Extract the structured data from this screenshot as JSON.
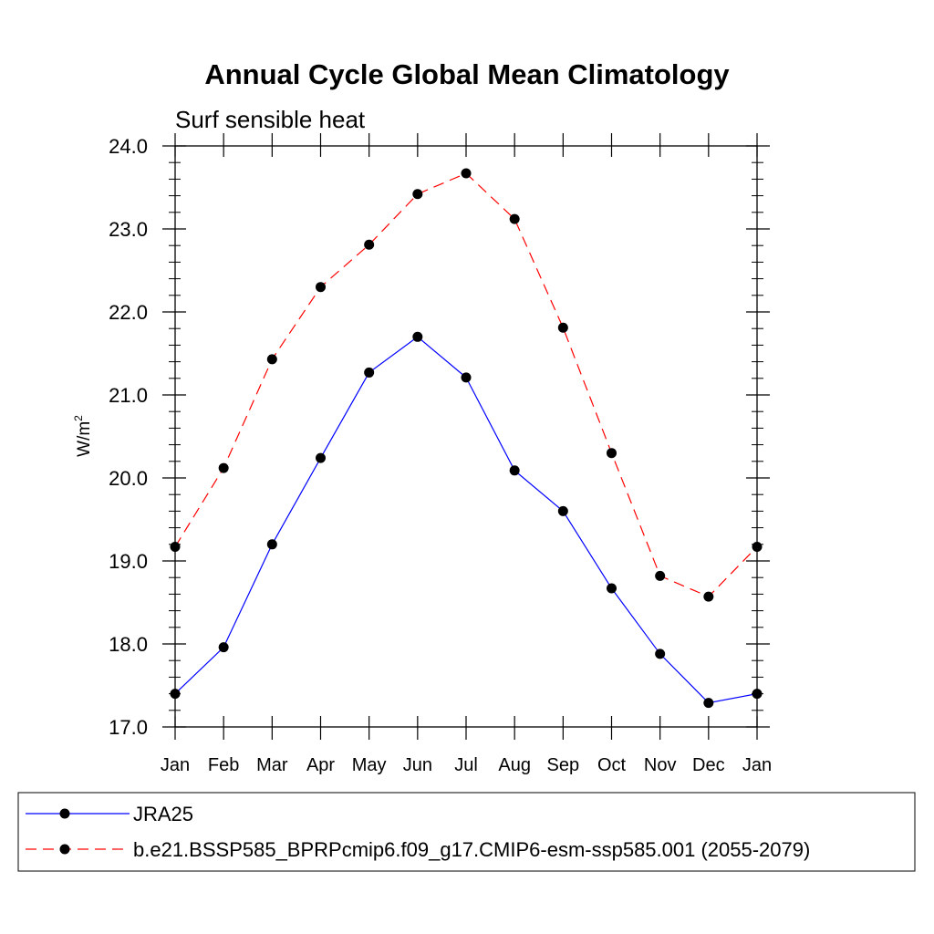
{
  "chart_data": {
    "type": "line",
    "title": "Annual Cycle Global Mean Climatology",
    "subtitle": "Surf sensible heat",
    "ylabel_base": "W/m",
    "ylabel_sup": "2",
    "categories": [
      "Jan",
      "Feb",
      "Mar",
      "Apr",
      "May",
      "Jun",
      "Jul",
      "Aug",
      "Sep",
      "Oct",
      "Nov",
      "Dec",
      "Jan"
    ],
    "ylim": [
      17.0,
      24.0
    ],
    "yticks": [
      "17.0",
      "18.0",
      "19.0",
      "20.0",
      "21.0",
      "22.0",
      "23.0",
      "24.0"
    ],
    "grid": false,
    "legend_position": "bottom",
    "series": [
      {
        "name": "JRA25",
        "color": "#0000ff",
        "dash": "solid",
        "marker": "filled-circle",
        "values": [
          17.4,
          17.96,
          19.2,
          20.24,
          21.27,
          21.7,
          21.21,
          20.09,
          19.6,
          18.67,
          17.88,
          17.29,
          17.4
        ]
      },
      {
        "name": "b.e21.BSSP585_BPRPcmip6.f09_g17.CMIP6-esm-ssp585.001 (2055-2079)",
        "color": "#ff0000",
        "dash": "dashed",
        "marker": "filled-circle",
        "values": [
          19.17,
          20.12,
          21.43,
          22.3,
          22.81,
          23.42,
          23.67,
          23.12,
          21.81,
          20.3,
          18.82,
          18.57,
          19.17
        ]
      }
    ]
  }
}
